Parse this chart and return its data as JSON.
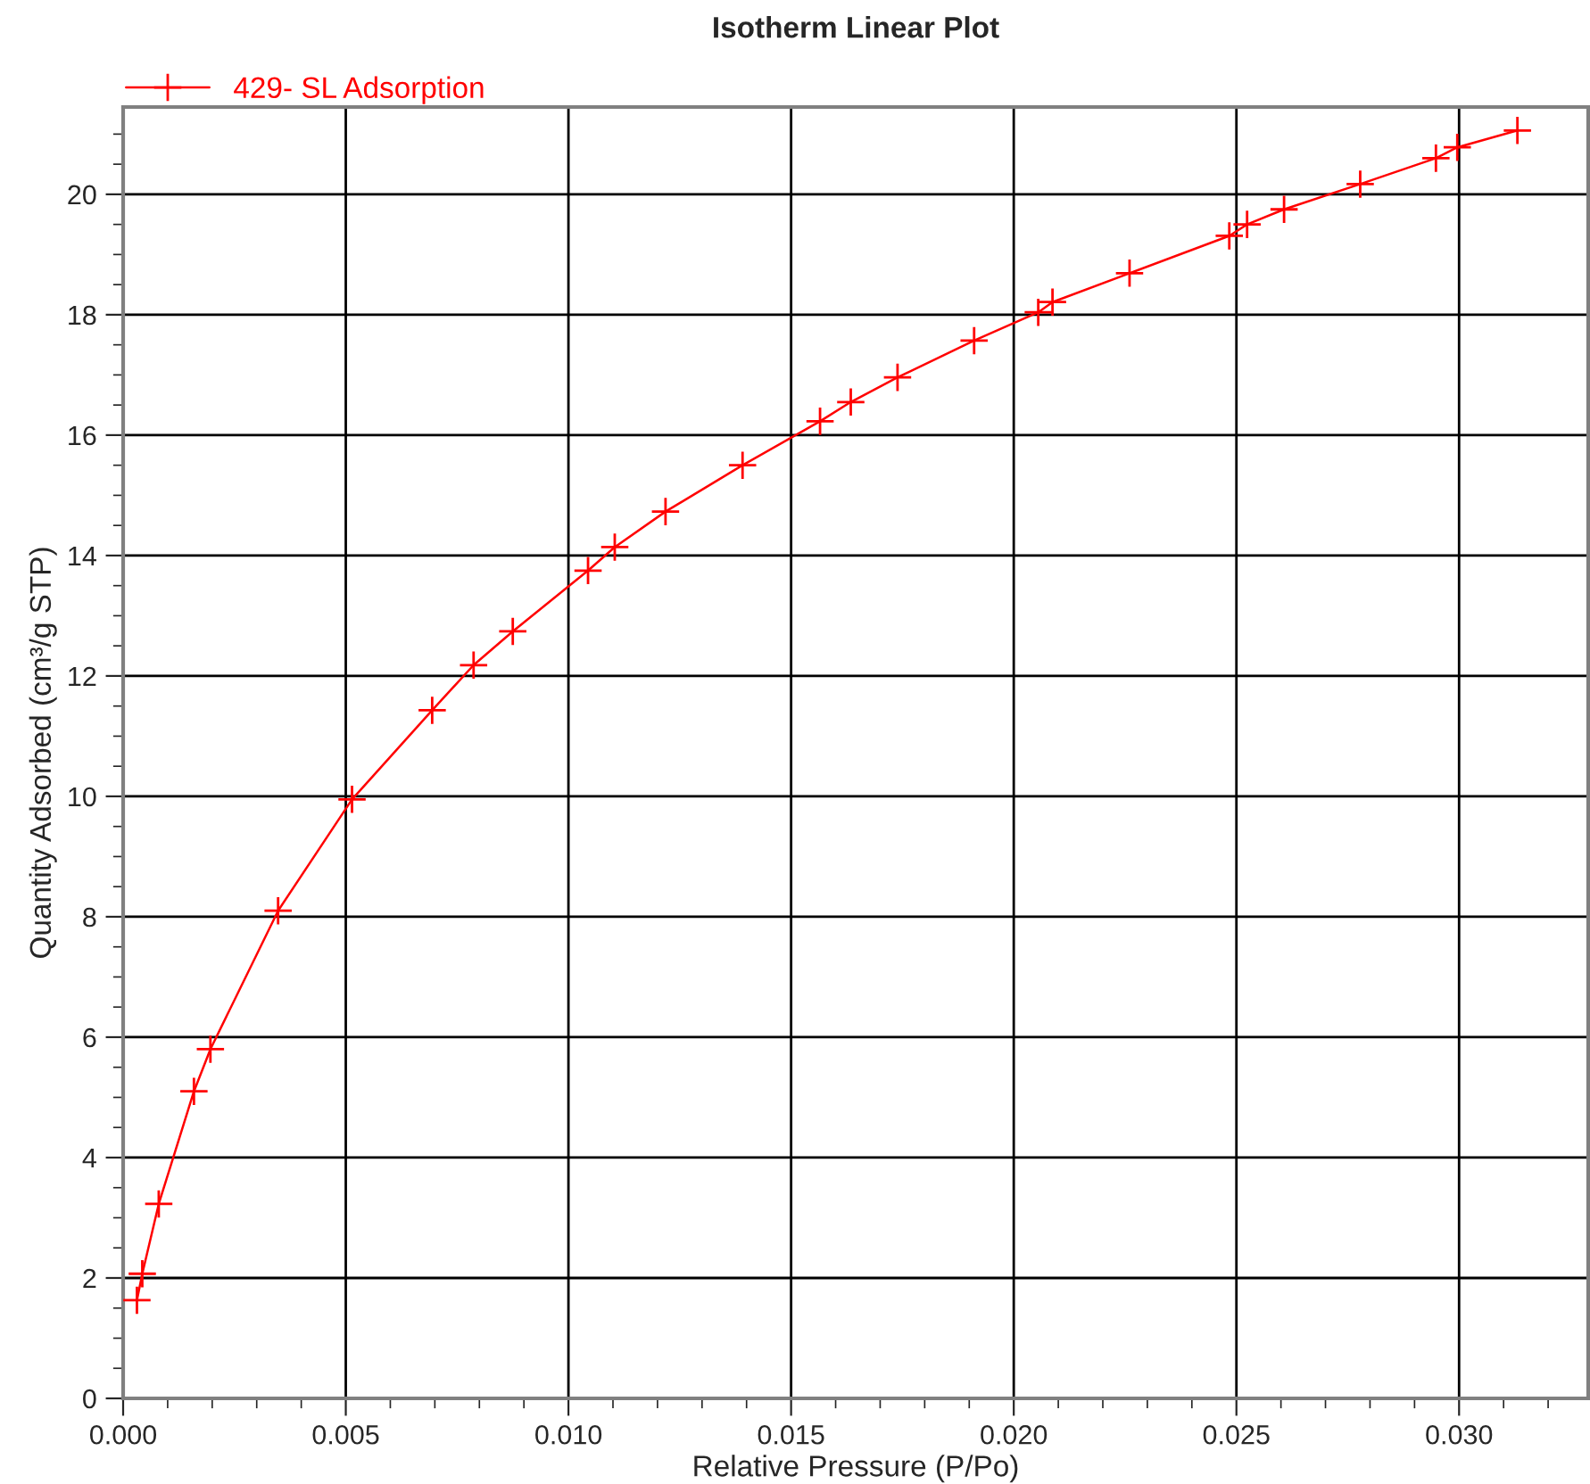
{
  "chart_data": {
    "type": "line",
    "title": "Isotherm Linear Plot",
    "xlabel": "Relative Pressure (P/Po)",
    "ylabel": "Quantity Adsorbed (cm³/g STP)",
    "series": [
      {
        "name": "429- SL Adsorption",
        "color": "#ff0000",
        "x": [
          0.00031,
          0.00043,
          0.0008,
          0.00159,
          0.00196,
          0.00348,
          0.00514,
          0.00694,
          0.00787,
          0.00875,
          0.01044,
          0.01104,
          0.01218,
          0.01391,
          0.01565,
          0.01634,
          0.01739,
          0.01911,
          0.02055,
          0.02087,
          0.0226,
          0.02484,
          0.02524,
          0.02607,
          0.02778,
          0.02948,
          0.02996,
          0.03131
        ],
        "values": [
          1.63,
          2.07,
          3.23,
          5.1,
          5.8,
          8.1,
          9.95,
          11.43,
          12.18,
          12.74,
          13.75,
          14.14,
          14.73,
          15.5,
          16.23,
          16.55,
          16.96,
          17.57,
          18.04,
          18.21,
          18.69,
          19.31,
          19.5,
          19.75,
          20.17,
          20.6,
          20.78,
          21.06
        ]
      }
    ],
    "xlim": [
      0,
      0.0329
    ],
    "ylim": [
      0,
      21.45
    ],
    "xticks": [
      {
        "value": 0,
        "label": "0.000"
      },
      {
        "value": 0.001,
        "label": null
      },
      {
        "value": 0.002,
        "label": null
      },
      {
        "value": 0.003,
        "label": null
      },
      {
        "value": 0.004,
        "label": null
      },
      {
        "value": 0.005,
        "label": "0.005"
      },
      {
        "value": 0.006,
        "label": null
      },
      {
        "value": 0.007,
        "label": null
      },
      {
        "value": 0.008,
        "label": null
      },
      {
        "value": 0.009,
        "label": null
      },
      {
        "value": 0.01,
        "label": "0.010"
      },
      {
        "value": 0.011,
        "label": null
      },
      {
        "value": 0.012,
        "label": null
      },
      {
        "value": 0.013,
        "label": null
      },
      {
        "value": 0.014,
        "label": null
      },
      {
        "value": 0.015,
        "label": "0.015"
      },
      {
        "value": 0.016,
        "label": null
      },
      {
        "value": 0.017,
        "label": null
      },
      {
        "value": 0.018,
        "label": null
      },
      {
        "value": 0.019,
        "label": null
      },
      {
        "value": 0.02,
        "label": "0.020"
      },
      {
        "value": 0.021,
        "label": null
      },
      {
        "value": 0.022,
        "label": null
      },
      {
        "value": 0.023,
        "label": null
      },
      {
        "value": 0.024,
        "label": null
      },
      {
        "value": 0.025,
        "label": "0.025"
      },
      {
        "value": 0.026,
        "label": null
      },
      {
        "value": 0.027,
        "label": null
      },
      {
        "value": 0.028,
        "label": null
      },
      {
        "value": 0.029,
        "label": null
      },
      {
        "value": 0.03,
        "label": "0.030"
      },
      {
        "value": 0.031,
        "label": null
      },
      {
        "value": 0.032,
        "label": null
      }
    ],
    "yticks": [
      0,
      {
        "value": 0.5,
        "label": null
      },
      {
        "value": 1,
        "label": null
      },
      {
        "value": 1.5,
        "label": null
      },
      2,
      {
        "value": 2.5,
        "label": null
      },
      {
        "value": 3,
        "label": null
      },
      {
        "value": 3.5,
        "label": null
      },
      4,
      {
        "value": 4.5,
        "label": null
      },
      {
        "value": 5,
        "label": null
      },
      {
        "value": 5.5,
        "label": null
      },
      6,
      {
        "value": 6.5,
        "label": null
      },
      {
        "value": 7,
        "label": null
      },
      {
        "value": 7.5,
        "label": null
      },
      8,
      {
        "value": 8.5,
        "label": null
      },
      {
        "value": 9,
        "label": null
      },
      {
        "value": 9.5,
        "label": null
      },
      10,
      {
        "value": 10.5,
        "label": null
      },
      {
        "value": 11,
        "label": null
      },
      {
        "value": 11.5,
        "label": null
      },
      12,
      {
        "value": 12.5,
        "label": null
      },
      {
        "value": 13,
        "label": null
      },
      {
        "value": 13.5,
        "label": null
      },
      14,
      {
        "value": 14.5,
        "label": null
      },
      {
        "value": 15,
        "label": null
      },
      {
        "value": 15.5,
        "label": null
      },
      16,
      {
        "value": 16.5,
        "label": null
      },
      {
        "value": 17,
        "label": null
      },
      {
        "value": 17.5,
        "label": null
      },
      18,
      {
        "value": 18.5,
        "label": null
      },
      {
        "value": 19,
        "label": null
      },
      {
        "value": 19.5,
        "label": null
      },
      20,
      {
        "value": 20.5,
        "label": null
      },
      {
        "value": 21,
        "label": null
      }
    ],
    "grid": true,
    "legend": "top left",
    "marker": "cross",
    "line_style": "solid"
  }
}
